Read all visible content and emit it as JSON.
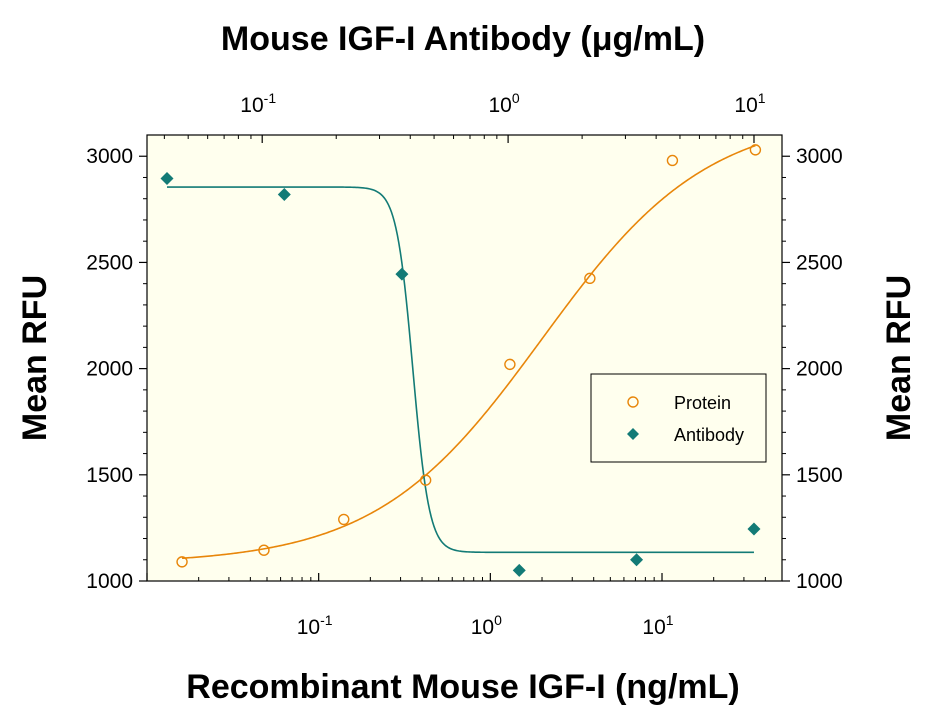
{
  "chart_data": {
    "type": "scatter",
    "title_top_axis": "Mouse IGF-I Antibody (μg/mL)",
    "xlabel": "Recombinant Mouse IGF-I (ng/mL)",
    "ylabel_left": "Mean RFU",
    "ylabel_right": "Mean RFU",
    "x_scale": "log",
    "xlim": [
      0.01,
      50
    ],
    "x_ticks": [
      {
        "base": "10",
        "exp": "-1",
        "value": 0.1
      },
      {
        "base": "10",
        "exp": "0",
        "value": 1
      },
      {
        "base": "10",
        "exp": "1",
        "value": 10
      }
    ],
    "top_scale": "log",
    "top_xlim": [
      0.034,
      13
    ],
    "top_ticks": [
      {
        "base": "10",
        "exp": "-1",
        "value": 0.1
      },
      {
        "base": "10",
        "exp": "0",
        "value": 1
      },
      {
        "base": "10",
        "exp": "1",
        "value": 10
      }
    ],
    "ylim": [
      1000,
      3100
    ],
    "y_ticks": [
      "1000",
      "1500",
      "2000",
      "2500",
      "3000"
    ],
    "legend_position": "right-middle",
    "series": [
      {
        "name": "Protein",
        "axis": "bottom",
        "marker": "open-circle",
        "color": "#e8860a",
        "x": [
          0.016,
          0.048,
          0.14,
          0.42,
          1.3,
          3.8,
          11.5,
          35
        ],
        "y": [
          1090,
          1145,
          1290,
          1475,
          2020,
          2425,
          2980,
          3030
        ],
        "fit": {
          "bottom": 1080,
          "top": 3200,
          "ec50": 2.0,
          "hill": 0.9
        }
      },
      {
        "name": "Antibody",
        "axis": "top",
        "marker": "filled-diamond",
        "color": "#137b76",
        "x": [
          0.041,
          0.123,
          0.37,
          1.11,
          3.33,
          10.0
        ],
        "y": [
          2895,
          2820,
          2445,
          1050,
          1100,
          1245
        ],
        "fit": {
          "top": 2855,
          "bottom": 1135,
          "ic50": 0.41,
          "hill": 13
        }
      }
    ]
  }
}
